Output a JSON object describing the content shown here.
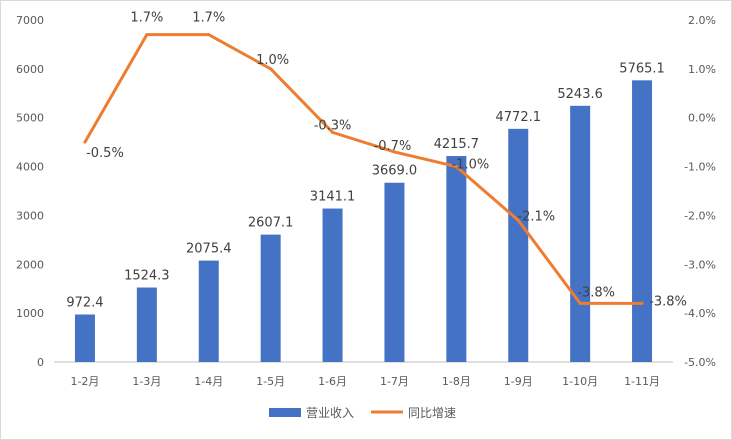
{
  "chart_data": {
    "type": "bar",
    "categories": [
      "1-2月",
      "1-3月",
      "1-4月",
      "1-5月",
      "1-6月",
      "1-7月",
      "1-8月",
      "1-9月",
      "1-10月",
      "1-11月"
    ],
    "series": [
      {
        "name": "营业收入",
        "type": "bar",
        "axis": "left",
        "color": "#4472C4",
        "values": [
          972.4,
          1524.3,
          2075.4,
          2607.1,
          3141.1,
          3669.0,
          4215.7,
          4772.1,
          5243.6,
          5765.1
        ],
        "labels": [
          "972.4",
          "1524.3",
          "2075.4",
          "2607.1",
          "3141.1",
          "3669.0",
          "4215.7",
          "4772.1",
          "5243.6",
          "5765.1"
        ]
      },
      {
        "name": "同比增速",
        "type": "line",
        "axis": "right",
        "color": "#ED7D31",
        "values": [
          -0.5,
          1.7,
          1.7,
          1.0,
          -0.3,
          -0.7,
          -1.0,
          -2.1,
          -3.8,
          -3.8
        ],
        "labels": [
          "-0.5%",
          "1.7%",
          "1.7%",
          "1.0%",
          "-0.3%",
          "-0.7%",
          "-1.0%",
          "-2.1%",
          "-3.8%",
          "-3.8%"
        ]
      }
    ],
    "y_left": {
      "ylim": [
        0,
        7000
      ],
      "ticks": [
        0,
        1000,
        2000,
        3000,
        4000,
        5000,
        6000,
        7000
      ],
      "tick_labels": [
        "0",
        "1000",
        "2000",
        "3000",
        "4000",
        "5000",
        "6000",
        "7000"
      ]
    },
    "y_right": {
      "ylim": [
        -5.0,
        2.0
      ],
      "ticks": [
        -5.0,
        -4.0,
        -3.0,
        -2.0,
        -1.0,
        0.0,
        1.0,
        2.0
      ],
      "tick_labels": [
        "-5.0%",
        "-4.0%",
        "-3.0%",
        "-2.0%",
        "-1.0%",
        "0.0%",
        "1.0%",
        "2.0%"
      ]
    },
    "grid": false,
    "legend": "bottom",
    "title": "",
    "xlabel": "",
    "ylabel": ""
  }
}
